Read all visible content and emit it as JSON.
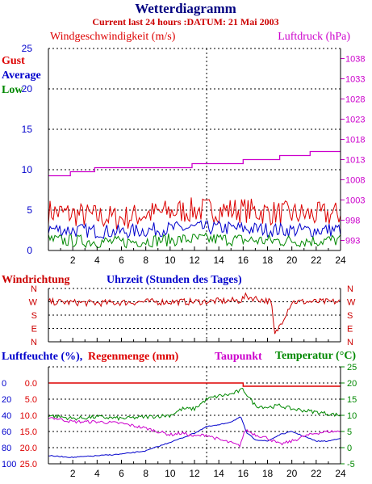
{
  "header": {
    "title": "Wetterdiagramm",
    "subtitle": "Current last 24 hours :DATUM: 21 Mai 2003"
  },
  "colors": {
    "title": "#000080",
    "subtitle": "#cc0000",
    "gust": "#dd0000",
    "average": "#0000cc",
    "low": "#008800",
    "pressure": "#cc00cc",
    "direction": "#cc0000",
    "humidity": "#0000cc",
    "rain": "#dd0000",
    "dewpoint": "#cc00cc",
    "temperature": "#008800",
    "axis": "#000000"
  },
  "chart_data": [
    {
      "type": "line",
      "id": "wind",
      "title": "Windgeschwindigkeit (m/s)",
      "right_title": "Luftdruck (hPa)",
      "legend": [
        "Gust",
        "Average",
        "Low"
      ],
      "x_ticks": [
        2,
        4,
        6,
        8,
        10,
        12,
        14,
        16,
        18,
        20,
        22,
        24
      ],
      "xlim": [
        0,
        24
      ],
      "y_ticks": [
        0,
        5,
        10,
        15,
        20,
        25
      ],
      "ylim": [
        0,
        25
      ],
      "y2_ticks": [
        993,
        998,
        1003,
        1008,
        1013,
        1018,
        1023,
        1028,
        1033,
        1038
      ],
      "y2lim": [
        990.5,
        1040.5
      ],
      "grid": true,
      "series": [
        {
          "name": "Gust",
          "axis": "left",
          "noise": true,
          "amp": 1.6,
          "x": [
            0,
            2,
            4,
            6,
            8,
            10,
            12,
            14,
            16,
            18,
            20,
            22,
            24
          ],
          "y": [
            4.8,
            4.5,
            4.2,
            4.0,
            4.5,
            4.8,
            5.0,
            5.0,
            5.0,
            4.7,
            4.5,
            4.4,
            4.5
          ]
        },
        {
          "name": "Average",
          "axis": "left",
          "noise": true,
          "amp": 0.9,
          "x": [
            0,
            2,
            4,
            6,
            8,
            10,
            12,
            14,
            16,
            18,
            20,
            22,
            24
          ],
          "y": [
            2.7,
            2.5,
            2.4,
            2.3,
            2.5,
            2.7,
            2.8,
            2.8,
            2.7,
            2.6,
            2.5,
            2.5,
            2.6
          ]
        },
        {
          "name": "Low",
          "axis": "left",
          "noise": true,
          "amp": 0.8,
          "x": [
            0,
            2,
            4,
            6,
            8,
            10,
            12,
            14,
            16,
            18,
            20,
            22,
            24
          ],
          "y": [
            1.3,
            1.2,
            1.1,
            1.0,
            1.2,
            1.3,
            1.4,
            1.4,
            1.3,
            1.2,
            1.2,
            1.2,
            1.3
          ]
        },
        {
          "name": "Luftdruck",
          "axis": "right",
          "step": true,
          "x": [
            0,
            1.5,
            1.8,
            3.5,
            3.8,
            9.2,
            11.8,
            12.0,
            15.7,
            16.0,
            18.7,
            19.0,
            21.5,
            24
          ],
          "y": [
            1009,
            1009,
            1010,
            1010,
            1011,
            1011,
            1012,
            1012,
            1012,
            1013,
            1013,
            1014,
            1015,
            1015
          ]
        }
      ]
    },
    {
      "type": "line",
      "id": "direction",
      "title": "Windrichtung",
      "xlabel": "Uhrzeit (Stunden des Tages)",
      "y_ticks": [
        "N",
        "W",
        "S",
        "E",
        "N"
      ],
      "xlim": [
        0,
        24
      ],
      "grid": true,
      "series": [
        {
          "name": "Windrichtung",
          "noise": true,
          "amp": 0.25,
          "x": [
            0,
            4,
            8,
            12,
            15.8,
            16.2,
            18.3,
            18.6,
            20,
            24
          ],
          "y": [
            3.0,
            2.9,
            3.0,
            3.0,
            3.1,
            3.4,
            3.0,
            0.5,
            3.0,
            3.0
          ]
        }
      ]
    },
    {
      "type": "line",
      "id": "climate",
      "left_labels": [
        "Luftfeuchte (%),",
        "Regenmenge (mm)"
      ],
      "dewpoint_label": "Taupunkt",
      "right_label": "Temperatur (°C)",
      "x_ticks": [
        2,
        4,
        6,
        8,
        10,
        12,
        14,
        16,
        18,
        20,
        22,
        24
      ],
      "xlim": [
        0,
        24
      ],
      "humidity_ticks": [
        0,
        20,
        40,
        60,
        80,
        100
      ],
      "rain_ticks": [
        "0.0",
        "5.0",
        "10.0",
        "15.0",
        "20.0",
        "25.0"
      ],
      "temp_ticks": [
        -5,
        0,
        5,
        10,
        15,
        20,
        25
      ],
      "ylim": [
        -5,
        25
      ],
      "grid": true,
      "series": [
        {
          "name": "Luftfeuchte",
          "unit": "%",
          "scale": "humidity",
          "noise": true,
          "amp": 0.6,
          "x": [
            0,
            2,
            4,
            6,
            8,
            9.5,
            11,
            12,
            13,
            14,
            15,
            15.8,
            16.3,
            17,
            18,
            19,
            20,
            21,
            22,
            23,
            24
          ],
          "y": [
            90,
            92,
            90,
            88,
            84,
            76,
            68,
            62,
            54,
            52,
            48,
            42,
            62,
            70,
            72,
            64,
            60,
            66,
            72,
            72,
            68
          ]
        },
        {
          "name": "Regenmenge",
          "unit": "mm",
          "scale": "rain",
          "step": true,
          "x": [
            0,
            15.8,
            16.0,
            24
          ],
          "y": [
            0,
            0,
            1.0,
            1.0
          ]
        },
        {
          "name": "Taupunkt",
          "unit": "°C",
          "scale": "temp",
          "noise": true,
          "amp": 0.5,
          "x": [
            0,
            2,
            4,
            6,
            8,
            10,
            11,
            12,
            13,
            14,
            15,
            15.7,
            16.2,
            17,
            18,
            19,
            20,
            21,
            22,
            23,
            24
          ],
          "y": [
            9.5,
            8.0,
            8.0,
            7.5,
            6.0,
            4.0,
            4.5,
            3.5,
            4.0,
            2.5,
            1.5,
            0.5,
            5.5,
            4.0,
            3.0,
            1.0,
            2.0,
            3.5,
            4.5,
            5.0,
            5.0
          ]
        },
        {
          "name": "Temperatur",
          "unit": "°C",
          "scale": "temp",
          "noise": true,
          "amp": 0.6,
          "x": [
            0,
            2,
            4,
            6,
            8,
            10,
            11,
            12,
            13,
            14,
            15,
            16,
            17,
            18,
            19,
            20,
            22,
            24
          ],
          "y": [
            10.0,
            9.0,
            9.5,
            9.0,
            9.5,
            10.0,
            12.0,
            12.0,
            15.0,
            16.0,
            16.5,
            18.0,
            13.0,
            12.5,
            13.0,
            12.0,
            11.0,
            10.0
          ]
        }
      ]
    }
  ]
}
